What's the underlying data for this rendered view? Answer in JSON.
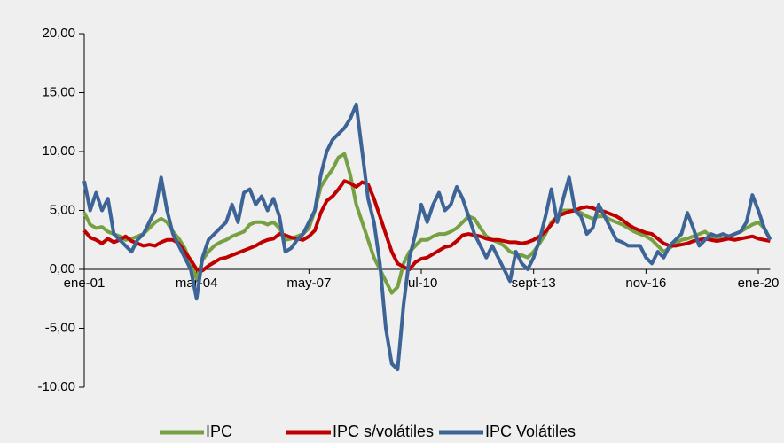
{
  "chart_data": {
    "type": "line",
    "categories": [
      "ene-01",
      null,
      null,
      null,
      null,
      null,
      null,
      null,
      null,
      null,
      null,
      null,
      null,
      null,
      null,
      null,
      null,
      null,
      null,
      "mar-04",
      null,
      null,
      null,
      null,
      null,
      null,
      null,
      null,
      null,
      null,
      null,
      null,
      null,
      null,
      null,
      null,
      null,
      null,
      "may-07",
      null,
      null,
      null,
      null,
      null,
      null,
      null,
      null,
      null,
      null,
      null,
      null,
      null,
      null,
      null,
      null,
      null,
      null,
      "jul-10",
      null,
      null,
      null,
      null,
      null,
      null,
      null,
      null,
      null,
      null,
      null,
      null,
      null,
      null,
      null,
      null,
      null,
      null,
      "sept-13",
      null,
      null,
      null,
      null,
      null,
      null,
      null,
      null,
      null,
      null,
      null,
      null,
      null,
      null,
      null,
      null,
      null,
      null,
      "nov-16",
      null,
      null,
      null,
      null,
      null,
      null,
      null,
      null,
      null,
      null,
      null,
      null,
      null,
      null,
      null,
      null,
      null,
      null,
      "ene-20",
      null,
      null
    ],
    "series": [
      {
        "name": "IPC",
        "color": "#77a043",
        "values": [
          4.8,
          3.8,
          3.5,
          3.6,
          3.2,
          3.0,
          2.8,
          2.5,
          2.6,
          2.8,
          3.0,
          3.5,
          4.0,
          4.3,
          4.0,
          3.2,
          2.6,
          1.8,
          0.5,
          -0.8,
          0.8,
          1.5,
          2.0,
          2.3,
          2.5,
          2.8,
          3.0,
          3.2,
          3.8,
          4.0,
          4.0,
          3.8,
          4.0,
          3.5,
          2.5,
          2.6,
          2.8,
          3.0,
          3.5,
          5.0,
          7.0,
          7.8,
          8.5,
          9.5,
          9.8,
          8.0,
          5.5,
          4.0,
          2.5,
          1.0,
          0.0,
          -1.0,
          -2.0,
          -1.5,
          0.5,
          1.5,
          2.0,
          2.5,
          2.5,
          2.8,
          3.0,
          3.0,
          3.2,
          3.5,
          4.0,
          4.5,
          4.3,
          3.5,
          2.8,
          2.5,
          2.3,
          2.0,
          1.5,
          1.3,
          1.2,
          1.0,
          1.5,
          2.2,
          3.0,
          4.0,
          4.5,
          5.0,
          5.0,
          5.0,
          4.8,
          4.5,
          4.3,
          4.5,
          4.5,
          4.2,
          4.0,
          3.8,
          3.5,
          3.2,
          3.0,
          2.8,
          2.5,
          2.0,
          1.5,
          1.8,
          2.2,
          2.5,
          2.6,
          2.8,
          3.0,
          3.2,
          2.8,
          2.5,
          2.6,
          2.8,
          3.0,
          3.2,
          3.5,
          3.8,
          4.0,
          3.5,
          2.6
        ]
      },
      {
        "name": "IPC s/volátiles",
        "color": "#c00000",
        "values": [
          3.3,
          2.7,
          2.5,
          2.2,
          2.6,
          2.3,
          2.5,
          2.8,
          2.4,
          2.2,
          2.0,
          2.1,
          2.0,
          2.3,
          2.5,
          2.5,
          2.2,
          1.5,
          0.8,
          0.0,
          -0.1,
          0.3,
          0.6,
          0.9,
          1.0,
          1.2,
          1.4,
          1.6,
          1.8,
          2.0,
          2.3,
          2.5,
          2.6,
          3.0,
          2.9,
          2.7,
          2.6,
          2.5,
          2.8,
          3.3,
          4.8,
          5.8,
          6.2,
          6.8,
          7.5,
          7.3,
          7.0,
          7.4,
          7.2,
          6.0,
          4.5,
          3.0,
          1.5,
          0.5,
          0.2,
          0.0,
          0.6,
          0.9,
          1.0,
          1.3,
          1.6,
          1.9,
          2.0,
          2.4,
          2.9,
          3.0,
          2.9,
          2.8,
          2.6,
          2.5,
          2.5,
          2.4,
          2.3,
          2.3,
          2.2,
          2.3,
          2.5,
          2.8,
          3.2,
          3.8,
          4.5,
          4.7,
          4.9,
          5.0,
          5.2,
          5.3,
          5.2,
          5.0,
          4.9,
          4.7,
          4.5,
          4.2,
          3.8,
          3.5,
          3.3,
          3.1,
          3.0,
          2.6,
          2.2,
          2.0,
          2.0,
          2.1,
          2.2,
          2.4,
          2.5,
          2.6,
          2.5,
          2.4,
          2.5,
          2.6,
          2.5,
          2.6,
          2.7,
          2.8,
          2.6,
          2.5,
          2.4
        ]
      },
      {
        "name": "IPC Volátiles",
        "color": "#3c6496",
        "values": [
          7.5,
          5.0,
          6.5,
          5.0,
          6.0,
          3.0,
          2.5,
          2.0,
          1.5,
          2.5,
          3.0,
          4.0,
          5.0,
          7.8,
          5.0,
          3.0,
          2.0,
          1.0,
          0.0,
          -2.5,
          1.0,
          2.5,
          3.0,
          3.5,
          4.0,
          5.5,
          4.0,
          6.5,
          6.8,
          5.5,
          6.2,
          5.0,
          6.0,
          4.5,
          1.5,
          1.8,
          2.5,
          3.0,
          4.0,
          5.0,
          8.0,
          10.0,
          11.0,
          11.5,
          12.0,
          12.8,
          14.0,
          10.0,
          6.0,
          4.0,
          0.5,
          -5.0,
          -8.0,
          -8.5,
          -3.0,
          1.0,
          3.0,
          5.5,
          4.0,
          5.5,
          6.5,
          5.0,
          5.5,
          7.0,
          6.0,
          4.5,
          3.0,
          2.0,
          1.0,
          2.0,
          1.0,
          0.0,
          -1.0,
          1.5,
          0.5,
          0.0,
          1.0,
          2.5,
          4.5,
          6.8,
          4.0,
          6.0,
          7.8,
          5.0,
          4.5,
          3.0,
          3.5,
          5.5,
          4.5,
          3.5,
          2.5,
          2.3,
          2.0,
          2.0,
          2.0,
          1.0,
          0.5,
          1.5,
          1.0,
          2.0,
          2.5,
          3.0,
          4.8,
          3.5,
          2.0,
          2.5,
          3.0,
          2.8,
          3.0,
          2.8,
          3.0,
          3.2,
          4.0,
          6.3,
          5.0,
          3.5,
          2.5
        ]
      }
    ],
    "ylim": [
      -10,
      20
    ],
    "yticks": [
      {
        "value": -10,
        "label": "-10,00"
      },
      {
        "value": -5,
        "label": "-5,00"
      },
      {
        "value": 0,
        "label": "0,00"
      },
      {
        "value": 5,
        "label": "5,00"
      },
      {
        "value": 10,
        "label": "10,00"
      },
      {
        "value": 15,
        "label": "15,00"
      },
      {
        "value": 20,
        "label": "20,00"
      }
    ],
    "legend": "bottom"
  }
}
